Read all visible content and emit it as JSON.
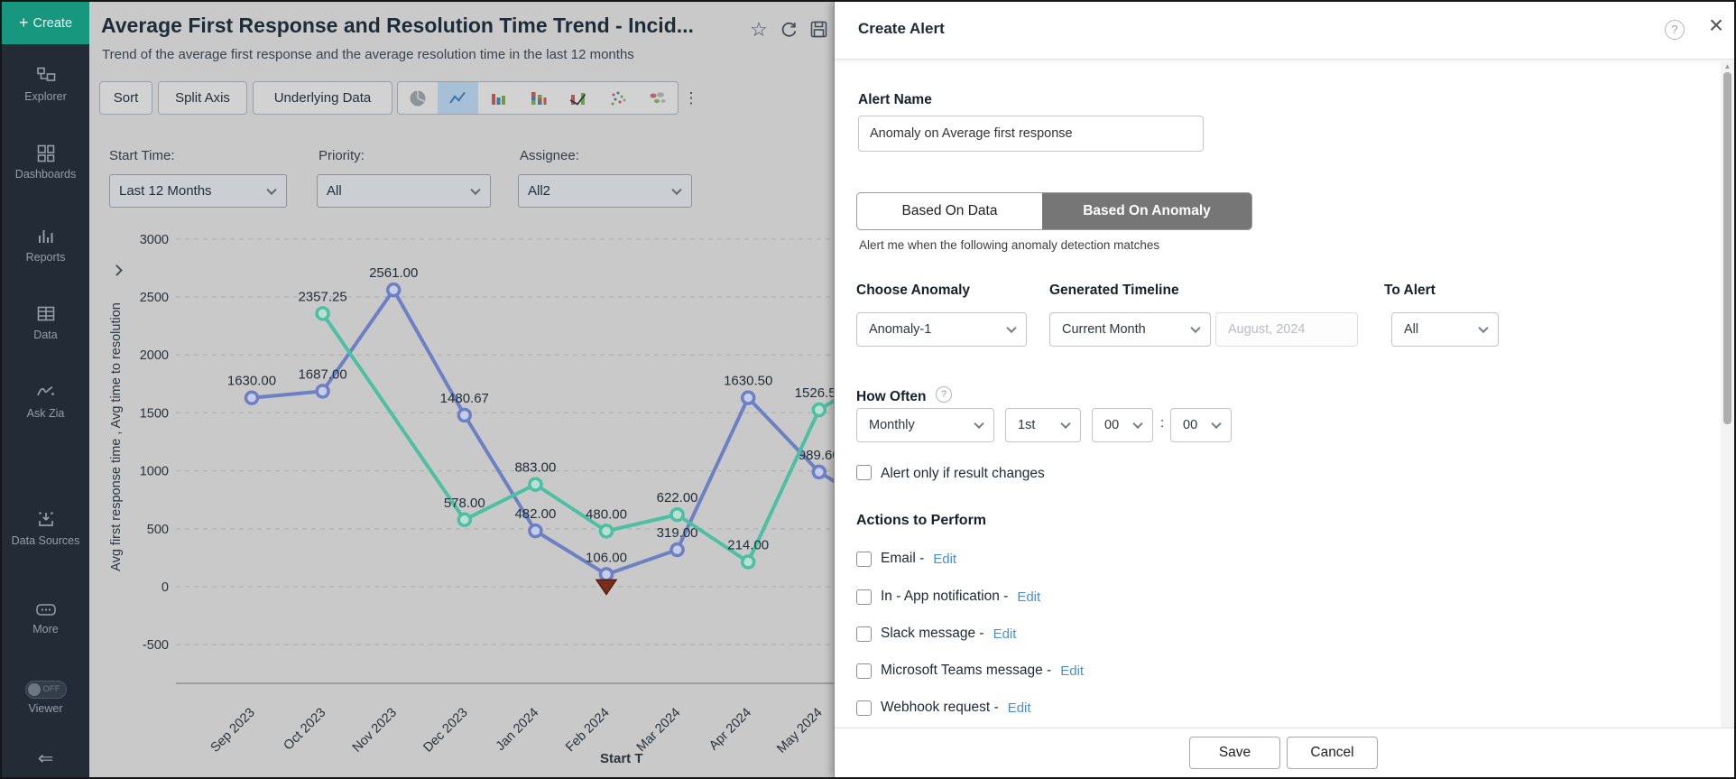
{
  "glyphs": {
    "star": "☆",
    "help": "?",
    "close": "×",
    "kebab": "⋮",
    "collapse": "⇐",
    "scroll_up": "▲",
    "plus": "+"
  },
  "sidebar": {
    "create": {
      "label": "Create"
    },
    "items": [
      {
        "label": "Explorer"
      },
      {
        "label": "Dashboards"
      },
      {
        "label": "Reports"
      },
      {
        "label": "Data"
      },
      {
        "label": "Ask Zia"
      },
      {
        "label": "Data Sources"
      },
      {
        "label": "More"
      }
    ],
    "viewer": {
      "label": "Viewer",
      "state": "OFF"
    }
  },
  "header": {
    "title": "Average First Response and Resolution Time Trend - Incid...",
    "subtitle": "Trend of the average first response and the average resolution time in the last 12 months"
  },
  "toolbar": {
    "sort": "Sort",
    "split_axis": "Split Axis",
    "underlying_data": "Underlying Data"
  },
  "filters": [
    {
      "label": "Start Time:",
      "value": "Last 12 Months"
    },
    {
      "label": "Priority:",
      "value": "All"
    },
    {
      "label": "Assignee:",
      "value": "All2"
    }
  ],
  "chart_data": {
    "type": "line",
    "x": [
      "Sep 2023",
      "Oct 2023",
      "Nov 2023",
      "Dec 2023",
      "Jan 2024",
      "Feb 2024",
      "Mar 2024",
      "Apr 2024",
      "May 2024"
    ],
    "series": [
      {
        "name": "Avg first response time",
        "color": "#6e80c4",
        "values": [
          1630.0,
          1687.0,
          2561.0,
          1480.67,
          482.0,
          106.0,
          319.0,
          1630.5,
          989.6
        ]
      },
      {
        "name": "Avg time to resolution",
        "color": "#4dbfa2",
        "values": [
          null,
          2357.25,
          null,
          578.0,
          883.0,
          480.0,
          622.0,
          214.0,
          1526.5
        ]
      }
    ],
    "yticks": [
      3000,
      2500,
      2000,
      1500,
      1000,
      500,
      0,
      -500
    ],
    "ylim": [
      -500,
      3000
    ],
    "grid": true,
    "legend_position": "none",
    "ylabel": "Avg first response time , Avg time to resolution",
    "xlabel": "Start T",
    "anomaly": {
      "month": "Feb 2024",
      "month_index": 5,
      "series": "Avg first response time",
      "value": 106.0,
      "marker": "triangle-down",
      "color": "#7b2d1c"
    }
  },
  "panel": {
    "title": "Create Alert",
    "alert_name_label": "Alert Name",
    "alert_name_value": "Anomaly on Average first response",
    "tabs": [
      {
        "label": "Based On Data",
        "active": false
      },
      {
        "label": "Based On Anomaly",
        "active": true
      }
    ],
    "caption": "Alert me when the following anomaly detection matches",
    "choose_anomaly": {
      "label": "Choose Anomaly",
      "value": "Anomaly-1"
    },
    "generated_timeline": {
      "label": "Generated Timeline",
      "value": "Current Month",
      "secondary": "August, 2024"
    },
    "to_alert": {
      "label": "To Alert",
      "value": "All"
    },
    "how_often": {
      "label": "How Often",
      "frequency": "Monthly",
      "day": "1st",
      "hour": "00",
      "separator": ":",
      "minute": "00"
    },
    "alert_only_label": "Alert only if result changes",
    "actions_heading": "Actions to Perform",
    "actions": [
      {
        "label": "Email -",
        "edit": "Edit"
      },
      {
        "label": "In - App notification -",
        "edit": "Edit"
      },
      {
        "label": "Slack message -",
        "edit": "Edit"
      },
      {
        "label": "Microsoft Teams message -",
        "edit": "Edit"
      },
      {
        "label": "Webhook request -",
        "edit": "Edit"
      }
    ],
    "save_label": "Save",
    "cancel_label": "Cancel"
  }
}
